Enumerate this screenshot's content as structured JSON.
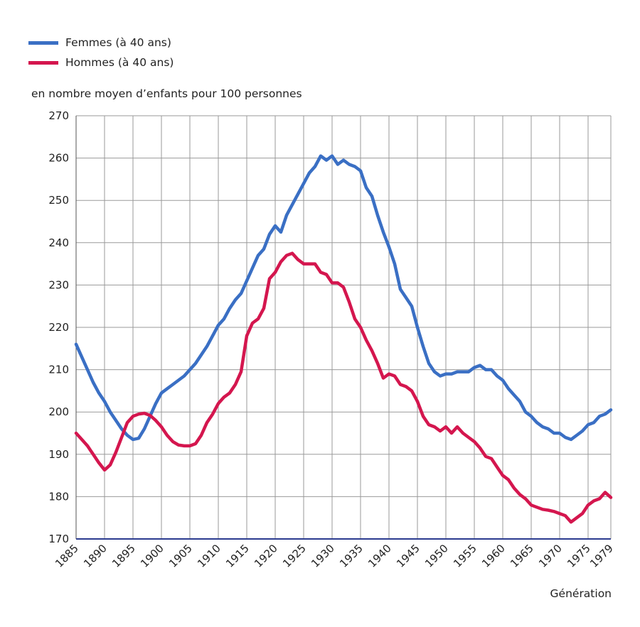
{
  "chart_data": {
    "type": "line",
    "ylabel": "en nombre moyen d’enfants pour 100 personnes",
    "xlabel": "Génération",
    "xlim": [
      1885,
      1979
    ],
    "ylim": [
      170,
      270
    ],
    "yticks": [
      170,
      180,
      190,
      200,
      210,
      220,
      230,
      240,
      250,
      260,
      270
    ],
    "xticks": [
      1885,
      1890,
      1895,
      1900,
      1905,
      1910,
      1915,
      1920,
      1925,
      1930,
      1935,
      1940,
      1945,
      1950,
      1955,
      1960,
      1965,
      1970,
      1975,
      1979
    ],
    "grid": true,
    "legend_position": "top-left",
    "series": [
      {
        "name": "Femmes (à 40 ans)",
        "color": "#3a6fc4",
        "points": [
          [
            1885,
            216
          ],
          [
            1886,
            213
          ],
          [
            1887,
            210
          ],
          [
            1888,
            207
          ],
          [
            1889,
            204.5
          ],
          [
            1890,
            202.5
          ],
          [
            1891,
            200
          ],
          [
            1892,
            198
          ],
          [
            1893,
            196
          ],
          [
            1894,
            194.5
          ],
          [
            1895,
            193.5
          ],
          [
            1896,
            193.8
          ],
          [
            1897,
            196
          ],
          [
            1898,
            199
          ],
          [
            1899,
            202
          ],
          [
            1900,
            204.5
          ],
          [
            1901,
            205.5
          ],
          [
            1902,
            206.5
          ],
          [
            1903,
            207.5
          ],
          [
            1904,
            208.5
          ],
          [
            1905,
            210
          ],
          [
            1906,
            211.5
          ],
          [
            1907,
            213.5
          ],
          [
            1908,
            215.5
          ],
          [
            1909,
            218
          ],
          [
            1910,
            220.5
          ],
          [
            1911,
            222
          ],
          [
            1912,
            224.5
          ],
          [
            1913,
            226.5
          ],
          [
            1914,
            228
          ],
          [
            1915,
            231
          ],
          [
            1916,
            234
          ],
          [
            1917,
            237
          ],
          [
            1918,
            238.5
          ],
          [
            1919,
            242
          ],
          [
            1920,
            244
          ],
          [
            1921,
            242.5
          ],
          [
            1922,
            246.5
          ],
          [
            1923,
            249
          ],
          [
            1924,
            251.5
          ],
          [
            1925,
            254
          ],
          [
            1926,
            256.5
          ],
          [
            1927,
            258
          ],
          [
            1928,
            260.5
          ],
          [
            1929,
            259.5
          ],
          [
            1930,
            260.5
          ],
          [
            1931,
            258.5
          ],
          [
            1932,
            259.5
          ],
          [
            1933,
            258.5
          ],
          [
            1934,
            258
          ],
          [
            1935,
            257
          ],
          [
            1936,
            253
          ],
          [
            1937,
            251
          ],
          [
            1938,
            246.5
          ],
          [
            1939,
            242.5
          ],
          [
            1940,
            239
          ],
          [
            1941,
            235
          ],
          [
            1942,
            229
          ],
          [
            1943,
            227
          ],
          [
            1944,
            225
          ],
          [
            1945,
            220
          ],
          [
            1946,
            215.5
          ],
          [
            1947,
            211.5
          ],
          [
            1948,
            209.5
          ],
          [
            1949,
            208.5
          ],
          [
            1950,
            209
          ],
          [
            1951,
            209
          ],
          [
            1952,
            209.5
          ],
          [
            1953,
            209.5
          ],
          [
            1954,
            209.5
          ],
          [
            1955,
            210.5
          ],
          [
            1956,
            211
          ],
          [
            1957,
            210
          ],
          [
            1958,
            210
          ],
          [
            1959,
            208.5
          ],
          [
            1960,
            207.5
          ],
          [
            1961,
            205.5
          ],
          [
            1962,
            204
          ],
          [
            1963,
            202.5
          ],
          [
            1964,
            200
          ],
          [
            1965,
            199
          ],
          [
            1966,
            197.5
          ],
          [
            1967,
            196.5
          ],
          [
            1968,
            196
          ],
          [
            1969,
            195
          ],
          [
            1970,
            195
          ],
          [
            1971,
            194
          ],
          [
            1972,
            193.5
          ],
          [
            1973,
            194.5
          ],
          [
            1974,
            195.5
          ],
          [
            1975,
            197
          ],
          [
            1976,
            197.5
          ],
          [
            1977,
            199
          ],
          [
            1978,
            199.5
          ],
          [
            1979,
            200.5
          ]
        ]
      },
      {
        "name": "Hommes (à 40 ans)",
        "color": "#d4164e",
        "points": [
          [
            1885,
            195
          ],
          [
            1886,
            193.5
          ],
          [
            1887,
            192
          ],
          [
            1888,
            190
          ],
          [
            1889,
            188
          ],
          [
            1890,
            186.3
          ],
          [
            1891,
            187.5
          ],
          [
            1892,
            190.5
          ],
          [
            1893,
            194
          ],
          [
            1894,
            197.5
          ],
          [
            1895,
            199
          ],
          [
            1896,
            199.5
          ],
          [
            1897,
            199.7
          ],
          [
            1898,
            199.2
          ],
          [
            1899,
            198
          ],
          [
            1900,
            196.5
          ],
          [
            1901,
            194.5
          ],
          [
            1902,
            193
          ],
          [
            1903,
            192.2
          ],
          [
            1904,
            192
          ],
          [
            1905,
            192
          ],
          [
            1906,
            192.5
          ],
          [
            1907,
            194.5
          ],
          [
            1908,
            197.5
          ],
          [
            1909,
            199.5
          ],
          [
            1910,
            202
          ],
          [
            1911,
            203.5
          ],
          [
            1912,
            204.5
          ],
          [
            1913,
            206.5
          ],
          [
            1914,
            209.5
          ],
          [
            1915,
            218
          ],
          [
            1916,
            221
          ],
          [
            1917,
            222
          ],
          [
            1918,
            224.5
          ],
          [
            1919,
            231.5
          ],
          [
            1920,
            233
          ],
          [
            1921,
            235.5
          ],
          [
            1922,
            237
          ],
          [
            1923,
            237.5
          ],
          [
            1924,
            236
          ],
          [
            1925,
            235
          ],
          [
            1926,
            235
          ],
          [
            1927,
            235
          ],
          [
            1928,
            233
          ],
          [
            1929,
            232.5
          ],
          [
            1930,
            230.5
          ],
          [
            1931,
            230.5
          ],
          [
            1932,
            229.5
          ],
          [
            1933,
            226
          ],
          [
            1934,
            222
          ],
          [
            1935,
            220
          ],
          [
            1936,
            217
          ],
          [
            1937,
            214.5
          ],
          [
            1938,
            211.5
          ],
          [
            1939,
            208
          ],
          [
            1940,
            209
          ],
          [
            1941,
            208.5
          ],
          [
            1942,
            206.5
          ],
          [
            1943,
            206
          ],
          [
            1944,
            205
          ],
          [
            1945,
            202.5
          ],
          [
            1946,
            199
          ],
          [
            1947,
            197
          ],
          [
            1948,
            196.5
          ],
          [
            1949,
            195.5
          ],
          [
            1950,
            196.5
          ],
          [
            1951,
            195
          ],
          [
            1952,
            196.5
          ],
          [
            1953,
            195
          ],
          [
            1954,
            194
          ],
          [
            1955,
            193
          ],
          [
            1956,
            191.5
          ],
          [
            1957,
            189.5
          ],
          [
            1958,
            189
          ],
          [
            1959,
            187
          ],
          [
            1960,
            185
          ],
          [
            1961,
            184
          ],
          [
            1962,
            182
          ],
          [
            1963,
            180.5
          ],
          [
            1964,
            179.5
          ],
          [
            1965,
            178
          ],
          [
            1966,
            177.5
          ],
          [
            1967,
            177
          ],
          [
            1968,
            176.8
          ],
          [
            1969,
            176.5
          ],
          [
            1970,
            176
          ],
          [
            1971,
            175.5
          ],
          [
            1972,
            174
          ],
          [
            1973,
            175
          ],
          [
            1974,
            176
          ],
          [
            1975,
            178
          ],
          [
            1976,
            179
          ],
          [
            1977,
            179.5
          ],
          [
            1978,
            181
          ],
          [
            1979,
            179.8
          ]
        ]
      }
    ]
  }
}
